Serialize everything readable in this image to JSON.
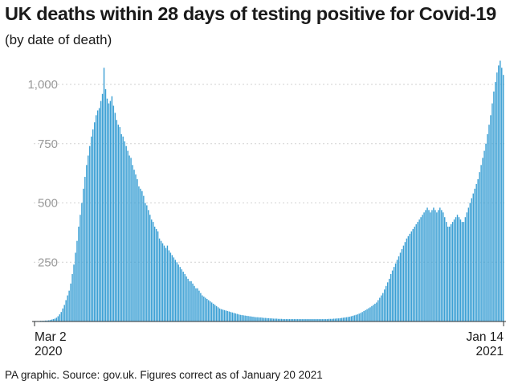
{
  "chart_data": {
    "type": "bar",
    "title": "UK deaths within 28 days of testing positive for Covid-19",
    "subtitle": "(by date of death)",
    "source": "PA graphic. Source: gov.uk. Figures correct as of January 20 2021",
    "xlabel": "",
    "ylabel": "",
    "ylim": [
      0,
      1000
    ],
    "yticks": [
      {
        "value": 250,
        "label": "250"
      },
      {
        "value": 500,
        "label": "500"
      },
      {
        "value": 750,
        "label": "750"
      },
      {
        "value": 1000,
        "label": "1,000"
      }
    ],
    "x_start": "2020-03-02",
    "x_end": "2021-01-14",
    "xtick_labels": [
      {
        "line1": "Mar 2",
        "line2": "2020",
        "align": "start"
      },
      {
        "line1": "Jan 14",
        "line2": "2021",
        "align": "end"
      }
    ],
    "grid": true,
    "bar_color": "#3a9fd4",
    "values": [
      2,
      2,
      2,
      2,
      3,
      3,
      3,
      4,
      4,
      5,
      6,
      8,
      10,
      12,
      16,
      22,
      30,
      40,
      55,
      70,
      90,
      110,
      130,
      160,
      200,
      240,
      290,
      340,
      400,
      450,
      500,
      560,
      610,
      660,
      700,
      740,
      780,
      810,
      840,
      870,
      890,
      900,
      930,
      960,
      1070,
      980,
      940,
      920,
      930,
      950,
      910,
      880,
      850,
      830,
      820,
      790,
      780,
      760,
      740,
      720,
      700,
      690,
      660,
      640,
      620,
      600,
      570,
      560,
      550,
      530,
      500,
      490,
      470,
      450,
      430,
      420,
      400,
      390,
      380,
      350,
      340,
      330,
      320,
      310,
      320,
      300,
      290,
      280,
      270,
      260,
      250,
      240,
      230,
      220,
      210,
      200,
      190,
      180,
      170,
      170,
      160,
      150,
      140,
      140,
      130,
      120,
      110,
      105,
      100,
      95,
      90,
      85,
      80,
      75,
      70,
      65,
      60,
      55,
      52,
      50,
      48,
      46,
      44,
      42,
      40,
      38,
      36,
      34,
      32,
      30,
      28,
      27,
      26,
      25,
      24,
      23,
      22,
      21,
      20,
      19,
      18,
      18,
      17,
      17,
      16,
      15,
      15,
      14,
      14,
      13,
      13,
      12,
      12,
      12,
      11,
      11,
      11,
      10,
      10,
      10,
      10,
      10,
      10,
      10,
      10,
      10,
      10,
      10,
      10,
      10,
      10,
      10,
      10,
      10,
      10,
      10,
      10,
      10,
      10,
      10,
      10,
      10,
      10,
      10,
      10,
      10,
      11,
      11,
      11,
      12,
      12,
      13,
      13,
      14,
      15,
      16,
      17,
      18,
      19,
      20,
      22,
      24,
      26,
      28,
      30,
      33,
      36,
      40,
      44,
      48,
      52,
      56,
      60,
      65,
      70,
      75,
      80,
      90,
      100,
      110,
      120,
      135,
      150,
      165,
      180,
      200,
      215,
      230,
      245,
      260,
      275,
      290,
      305,
      320,
      335,
      350,
      360,
      370,
      380,
      390,
      400,
      410,
      420,
      430,
      440,
      450,
      460,
      470,
      480,
      470,
      460,
      470,
      480,
      470,
      460,
      470,
      480,
      470,
      460,
      440,
      420,
      400,
      400,
      410,
      420,
      430,
      440,
      450,
      440,
      430,
      420,
      420,
      440,
      460,
      480,
      500,
      520,
      540,
      560,
      580,
      600,
      630,
      660,
      690,
      720,
      750,
      790,
      830,
      870,
      920,
      970,
      1010,
      1050,
      1080,
      1100,
      1070,
      1040
    ]
  }
}
